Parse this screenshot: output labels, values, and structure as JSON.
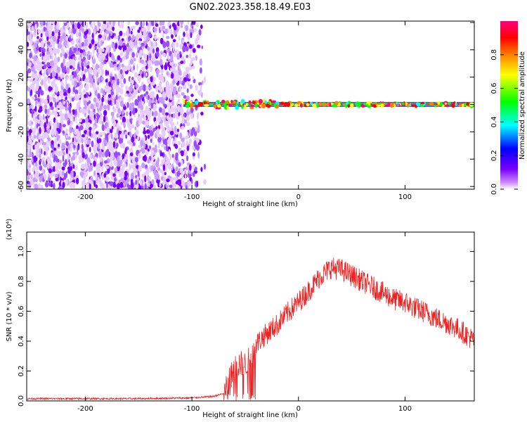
{
  "figure": {
    "title": "GN02.2023.358.18.49.E03"
  },
  "chart_data": [
    {
      "type": "heatmap",
      "title": "GN02.2023.358.18.49.E03",
      "xlabel": "Height of straight line (km)",
      "ylabel": "Frequency (Hz)",
      "xlim": [
        -255,
        165
      ],
      "ylim": [
        -62,
        61
      ],
      "xticks": [
        -200,
        -100,
        0,
        100
      ],
      "yticks": [
        -60,
        -40,
        -20,
        0,
        20,
        40,
        60
      ],
      "xtick_labels": [
        "-200",
        "-100",
        "0",
        "100"
      ],
      "ytick_labels": [
        "-60",
        "-40",
        "-20",
        "0",
        "20",
        "40",
        "60"
      ],
      "colorbar": {
        "label": "Normalized spectral amplitude",
        "range": [
          0,
          1
        ],
        "ticks": [
          0.0,
          0.2,
          0.4,
          0.6,
          0.8
        ],
        "tick_labels": [
          "0.0",
          "0.2",
          "0.4",
          "0.6",
          "0.8"
        ],
        "colormap": [
          "#ffffff",
          "#cc88ff",
          "#7a00ff",
          "#0000ff",
          "#00ffff",
          "#00ff00",
          "#ffff00",
          "#ff8000",
          "#ff0000",
          "#ff0080"
        ]
      },
      "regions": [
        {
          "name": "broadband noise",
          "x_range": [
            -255,
            -85
          ],
          "freq_range": [
            -62,
            61
          ],
          "amplitude": [
            0.0,
            0.25
          ]
        },
        {
          "name": "narrowband line",
          "x_range": [
            -108,
            165
          ],
          "freq_center": 0,
          "amplitude": [
            0.3,
            1.0
          ]
        }
      ],
      "grid": false
    },
    {
      "type": "line",
      "xlabel": "Height of straight line (km)",
      "ylabel": "SNR (10 * v/v)",
      "y_multiplier": "(x10⁴)",
      "xlim": [
        -255,
        165
      ],
      "ylim": [
        0,
        1.13
      ],
      "xticks": [
        -200,
        -100,
        0,
        100
      ],
      "yticks": [
        0.0,
        0.2,
        0.4,
        0.6,
        0.8,
        1.0
      ],
      "xtick_labels": [
        "-200",
        "-100",
        "0",
        "100"
      ],
      "ytick_labels": [
        "0.0",
        "0.2",
        "0.4",
        "0.6",
        "0.8",
        "1.0"
      ],
      "series": [
        {
          "color": "#ee2222",
          "x": [
            -255,
            -200,
            -150,
            -100,
            -80,
            -70,
            -65,
            -60,
            -55,
            -50,
            -45,
            -40,
            -30,
            -20,
            -10,
            0,
            10,
            20,
            30,
            40,
            50,
            60,
            70,
            80,
            90,
            100,
            110,
            120,
            130,
            140,
            150,
            160,
            165
          ],
          "y": [
            0.015,
            0.015,
            0.015,
            0.02,
            0.03,
            0.05,
            0.14,
            0.22,
            0.25,
            0.24,
            0.28,
            0.38,
            0.45,
            0.51,
            0.59,
            0.66,
            0.74,
            0.83,
            0.89,
            0.88,
            0.84,
            0.8,
            0.76,
            0.72,
            0.68,
            0.66,
            0.62,
            0.59,
            0.55,
            0.52,
            0.48,
            0.43,
            0.4
          ]
        }
      ],
      "grid": false
    }
  ]
}
